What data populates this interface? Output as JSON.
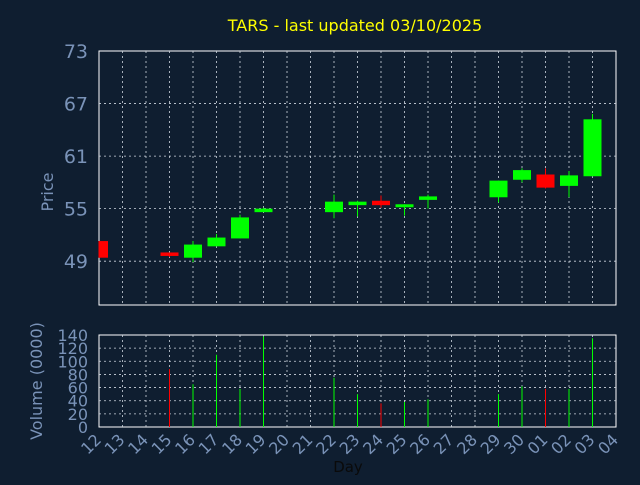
{
  "colors": {
    "background": "#0f1e30",
    "frame": "#ffffff",
    "grid": "#cfd6e0",
    "title": "#ffff00",
    "axis_text": "#7a93b8",
    "up": "#00ff00",
    "down": "#ff0000"
  },
  "chart_data": [
    {
      "type": "candlestick",
      "title": "TARS - last updated 03/10/2025",
      "ylabel": "Price",
      "ylim": [
        44,
        73
      ],
      "yticks": [
        49,
        55,
        61,
        67,
        73
      ],
      "grid": true,
      "days": [
        "12",
        "13",
        "14",
        "15",
        "16",
        "17",
        "18",
        "19",
        "20",
        "21",
        "22",
        "23",
        "24",
        "25",
        "26",
        "27",
        "28",
        "29",
        "30",
        "01",
        "02",
        "03",
        "04"
      ],
      "candles": [
        {
          "day": "12",
          "open": 51.3,
          "high": 51.3,
          "low": 49.4,
          "close": 49.4,
          "direction": "down"
        },
        {
          "day": "15",
          "open": 50.0,
          "high": 50.0,
          "low": 49.5,
          "close": 49.6,
          "direction": "down"
        },
        {
          "day": "16",
          "open": 49.4,
          "high": 51.3,
          "low": 48.9,
          "close": 50.9,
          "direction": "up"
        },
        {
          "day": "17",
          "open": 50.7,
          "high": 52.1,
          "low": 50.7,
          "close": 51.7,
          "direction": "up"
        },
        {
          "day": "18",
          "open": 51.6,
          "high": 54.3,
          "low": 51.6,
          "close": 54.0,
          "direction": "up"
        },
        {
          "day": "19",
          "open": 54.6,
          "high": 55.1,
          "low": 54.6,
          "close": 55.0,
          "direction": "up"
        },
        {
          "day": "22",
          "open": 54.6,
          "high": 56.6,
          "low": 53.9,
          "close": 55.8,
          "direction": "up"
        },
        {
          "day": "23",
          "open": 55.4,
          "high": 55.9,
          "low": 54.1,
          "close": 55.8,
          "direction": "up"
        },
        {
          "day": "24",
          "open": 55.9,
          "high": 56.5,
          "low": 55.1,
          "close": 55.4,
          "direction": "down"
        },
        {
          "day": "25",
          "open": 55.2,
          "high": 55.5,
          "low": 54.2,
          "close": 55.5,
          "direction": "up"
        },
        {
          "day": "26",
          "open": 56.0,
          "high": 56.6,
          "low": 55.0,
          "close": 56.4,
          "direction": "up"
        },
        {
          "day": "29",
          "open": 56.3,
          "high": 58.2,
          "low": 55.7,
          "close": 58.2,
          "direction": "up"
        },
        {
          "day": "30",
          "open": 58.3,
          "high": 59.6,
          "low": 58.0,
          "close": 59.4,
          "direction": "up"
        },
        {
          "day": "01",
          "open": 58.9,
          "high": 59.6,
          "low": 57.3,
          "close": 57.4,
          "direction": "down"
        },
        {
          "day": "02",
          "open": 57.6,
          "high": 59.3,
          "low": 56.3,
          "close": 58.8,
          "direction": "up"
        },
        {
          "day": "03",
          "open": 58.7,
          "high": 65.8,
          "low": 58.7,
          "close": 65.2,
          "direction": "up"
        }
      ]
    },
    {
      "type": "bar",
      "ylabel": "Volume (0000)",
      "xlabel": "Day",
      "ylim": [
        0,
        140
      ],
      "yticks": [
        0,
        20,
        40,
        60,
        80,
        100,
        120,
        140
      ],
      "grid": true,
      "days": [
        "12",
        "13",
        "14",
        "15",
        "16",
        "17",
        "18",
        "19",
        "20",
        "21",
        "22",
        "23",
        "24",
        "25",
        "26",
        "27",
        "28",
        "29",
        "30",
        "01",
        "02",
        "03",
        "04"
      ],
      "bars": [
        {
          "day": "15",
          "value": 88,
          "direction": "down"
        },
        {
          "day": "16",
          "value": 65,
          "direction": "up"
        },
        {
          "day": "17",
          "value": 110,
          "direction": "up"
        },
        {
          "day": "18",
          "value": 58,
          "direction": "up"
        },
        {
          "day": "19",
          "value": 138,
          "direction": "up"
        },
        {
          "day": "22",
          "value": 75,
          "direction": "up"
        },
        {
          "day": "23",
          "value": 50,
          "direction": "up"
        },
        {
          "day": "24",
          "value": 36,
          "direction": "down"
        },
        {
          "day": "25",
          "value": 38,
          "direction": "up"
        },
        {
          "day": "26",
          "value": 42,
          "direction": "up"
        },
        {
          "day": "29",
          "value": 50,
          "direction": "up"
        },
        {
          "day": "30",
          "value": 62,
          "direction": "up"
        },
        {
          "day": "01",
          "value": 58,
          "direction": "down"
        },
        {
          "day": "02",
          "value": 58,
          "direction": "up"
        },
        {
          "day": "03",
          "value": 135,
          "direction": "up"
        }
      ]
    }
  ]
}
